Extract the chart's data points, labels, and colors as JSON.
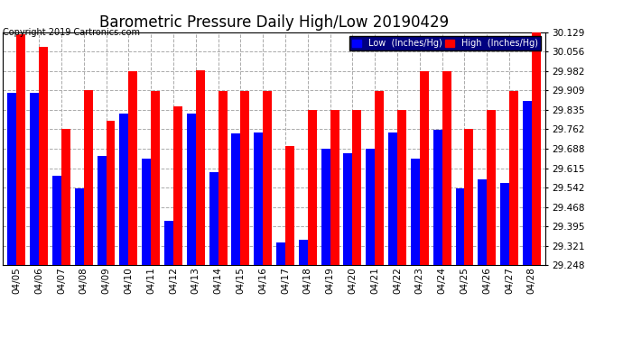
{
  "title": "Barometric Pressure Daily High/Low 20190429",
  "copyright": "Copyright 2019 Cartronics.com",
  "dates": [
    "04/05",
    "04/06",
    "04/07",
    "04/08",
    "04/09",
    "04/10",
    "04/11",
    "04/12",
    "04/13",
    "04/14",
    "04/15",
    "04/16",
    "04/17",
    "04/18",
    "04/19",
    "04/20",
    "04/21",
    "04/22",
    "04/23",
    "04/24",
    "04/25",
    "04/26",
    "04/27",
    "04/28"
  ],
  "low": [
    29.9,
    29.9,
    29.587,
    29.537,
    29.66,
    29.82,
    29.65,
    29.415,
    29.82,
    29.6,
    29.748,
    29.75,
    29.336,
    29.345,
    29.69,
    29.672,
    29.69,
    29.75,
    29.65,
    29.76,
    29.54,
    29.572,
    29.56,
    29.868
  ],
  "high": [
    30.12,
    30.072,
    29.762,
    29.909,
    29.795,
    29.98,
    29.908,
    29.848,
    29.984,
    29.906,
    29.908,
    29.908,
    29.7,
    29.835,
    29.835,
    29.835,
    29.908,
    29.835,
    29.98,
    29.98,
    29.762,
    29.835,
    29.908,
    30.129
  ],
  "ymin": 29.248,
  "ymax": 30.129,
  "yticks": [
    29.248,
    29.321,
    29.395,
    29.468,
    29.542,
    29.615,
    29.688,
    29.762,
    29.835,
    29.909,
    29.982,
    30.056,
    30.129
  ],
  "bg_color": "#ffffff",
  "low_color": "#0000ff",
  "high_color": "#ff0000",
  "grid_color": "#aaaaaa",
  "title_fontsize": 12,
  "tick_fontsize": 7.5,
  "copyright_fontsize": 7,
  "legend_low_label": "Low  (Inches/Hg)",
  "legend_high_label": "High  (Inches/Hg)",
  "legend_bg": "#000080",
  "bar_width": 0.4,
  "bar_gap": 0.0
}
